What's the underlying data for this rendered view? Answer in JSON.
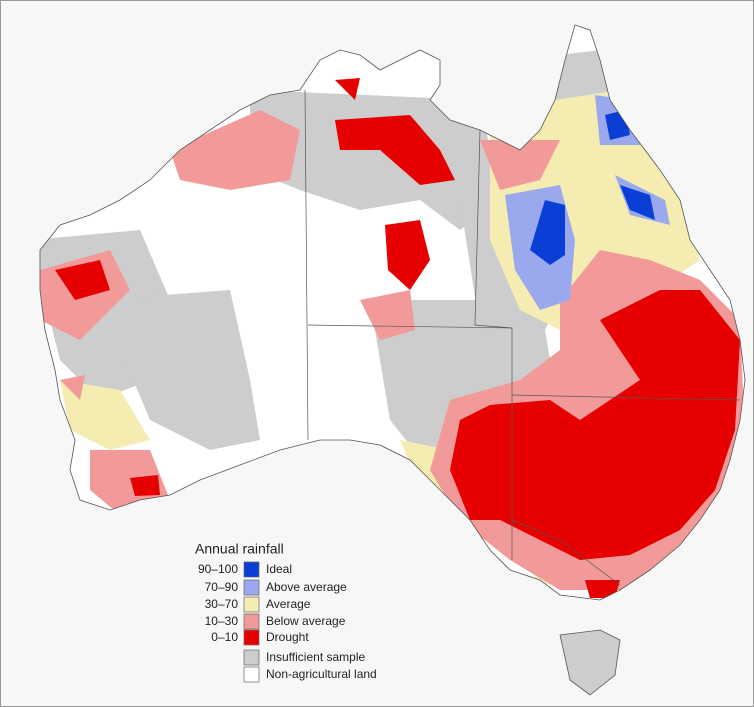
{
  "legend": {
    "title": "Annual rainfall",
    "items": [
      {
        "range": "90–100",
        "label": "Ideal",
        "color": "#0a3fd6"
      },
      {
        "range": "70–90",
        "label": "Above average",
        "color": "#9aa9ee"
      },
      {
        "range": "30–70",
        "label": "Average",
        "color": "#f5ecb2"
      },
      {
        "range": "10–30",
        "label": "Below average",
        "color": "#f29a9a"
      },
      {
        "range": "0–10",
        "label": "Drought",
        "color": "#e60000"
      },
      {
        "label": "Insufficient sample",
        "color": "#cdcdcd"
      },
      {
        "label": "Non-agricultural land",
        "color": "#ffffff"
      }
    ]
  }
}
